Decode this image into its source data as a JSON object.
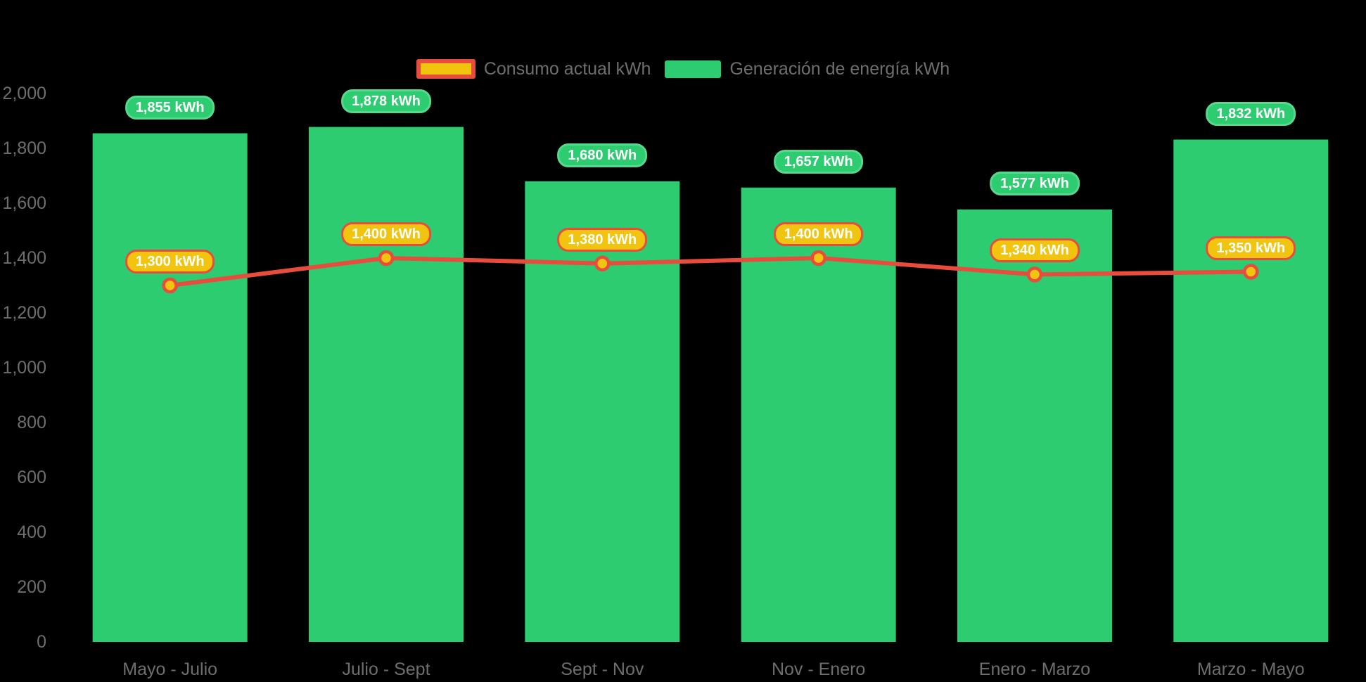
{
  "app": {
    "background": "#000000"
  },
  "colors": {
    "bar_green": "#2ecc71",
    "badge_green_border": "#57d98d",
    "line_red": "#e74c3c",
    "marker_and_badge_yellow": "#f1c40f",
    "axis_text_gray": "#6e6e6e",
    "badge_text": "#ffffff"
  },
  "legend": {
    "items": [
      {
        "label": "Consumo actual kWh",
        "swatch": "yellow-fill-red-border",
        "series_type": "line"
      },
      {
        "label": "Generación de energía kWh",
        "swatch": "green-fill",
        "series_type": "bar"
      }
    ]
  },
  "chart_data": {
    "type": "bar",
    "title": "",
    "xlabel": "",
    "ylabel": "",
    "categories": [
      "Mayo - Julio",
      "Julio - Sept",
      "Sept - Nov",
      "Nov - Enero",
      "Enero - Marzo",
      "Marzo - Mayo"
    ],
    "series": [
      {
        "name": "Generación de energía kWh",
        "type": "bar",
        "color": "#2ecc71",
        "values": [
          1855,
          1878,
          1680,
          1657,
          1577,
          1832
        ],
        "data_labels": [
          "1,855 kWh",
          "1,878 kWh",
          "1,680 kWh",
          "1,657 kWh",
          "1,577 kWh",
          "1,832 kWh"
        ]
      },
      {
        "name": "Consumo actual kWh",
        "type": "line",
        "color": "#e74c3c",
        "marker_color": "#f1c40f",
        "values": [
          1300,
          1400,
          1380,
          1400,
          1340,
          1350
        ],
        "data_labels": [
          "1,300 kWh",
          "1,400 kWh",
          "1,380 kWh",
          "1,400 kWh",
          "1,340 kWh",
          "1,350 kWh"
        ]
      }
    ],
    "ylim": [
      0,
      2000
    ],
    "ytick_step": 200,
    "yticks": [
      {
        "value": 0,
        "label": "0"
      },
      {
        "value": 200,
        "label": "200"
      },
      {
        "value": 400,
        "label": "400"
      },
      {
        "value": 600,
        "label": "600"
      },
      {
        "value": 800,
        "label": "800"
      },
      {
        "value": 1000,
        "label": "1,000"
      },
      {
        "value": 1200,
        "label": "1,200"
      },
      {
        "value": 1400,
        "label": "1,400"
      },
      {
        "value": 1600,
        "label": "1,600"
      },
      {
        "value": 1800,
        "label": "1,800"
      },
      {
        "value": 2000,
        "label": "2,000"
      }
    ],
    "grid": false,
    "legend_position": "top-center"
  }
}
